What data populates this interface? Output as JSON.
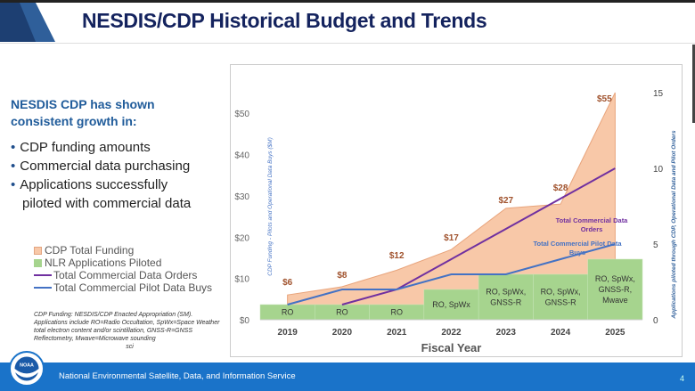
{
  "slide": {
    "title": "NESDIS/CDP Historical Budget and Trends",
    "intro": "NESDIS CDP has shown consistent growth in:",
    "bullets": [
      "CDP funding amounts",
      "Commercial data purchasing",
      "Applications successfully",
      "piloted with commercial data"
    ],
    "note": [
      "CDP Funding:  NESDIS/CDP Enacted Appropriation (SM).",
      "Applications include RO=Radio Occultation, SpWx=Space Weather",
      "total electron content and/or scintillation, GNSS-R=GNSS",
      "Reflectometry, Mwave=Microwave sounding",
      "sci"
    ],
    "footer": "National Environmental Satellite, Data, and Information Service",
    "page": "4",
    "logo_text": "NOAA"
  },
  "chart_data": {
    "type": "area",
    "categories": [
      "2019",
      "2020",
      "2021",
      "2022",
      "2023",
      "2024",
      "2025"
    ],
    "xlabel": "Fiscal Year",
    "ylabel": "CDP Funding - Pilots and Operational Data Buys ($M)",
    "y2label": "Applications piloted through CDP, Operational Data and Pilot Orders",
    "ylim": [
      0,
      55
    ],
    "y2lim": [
      0,
      15
    ],
    "yticks": [
      "$0",
      "$10",
      "$20",
      "$30",
      "$40",
      "$50"
    ],
    "y2ticks": [
      "0",
      "5",
      "10",
      "15"
    ],
    "series": [
      {
        "name": "CDP Total Funding",
        "type": "area",
        "axis": "left",
        "color": "#f8c8a8",
        "values": [
          6,
          8,
          12,
          17,
          27,
          28,
          55
        ],
        "labels": [
          "$6",
          "$8",
          "$12",
          "$17",
          "$27",
          "$28",
          "$55"
        ]
      },
      {
        "name": "NLR Applications Piloted",
        "type": "bar",
        "axis": "right",
        "color": "#a6d48e",
        "values": [
          1,
          1,
          1,
          2,
          3,
          3,
          4
        ],
        "labels": [
          "RO",
          "RO",
          "RO",
          "RO, SpWx",
          "RO, SpWx, GNSS-R",
          "RO, SpWx, GNSS-R",
          "RO, SpWx, GNSS-R, Mwave"
        ]
      },
      {
        "name": "Total Commercial Data Orders",
        "type": "line",
        "axis": "right",
        "color": "#7030a0",
        "values": [
          null,
          1,
          2,
          4,
          6,
          8,
          10
        ],
        "annotation": "Total Commercial Data Orders"
      },
      {
        "name": "Total Commercial Pilot Data Buys",
        "type": "line",
        "axis": "right",
        "color": "#4472c4",
        "values": [
          1,
          2,
          2,
          3,
          3,
          4,
          5
        ],
        "annotation": "Total Commercial Pilot Data Buys"
      }
    ]
  }
}
